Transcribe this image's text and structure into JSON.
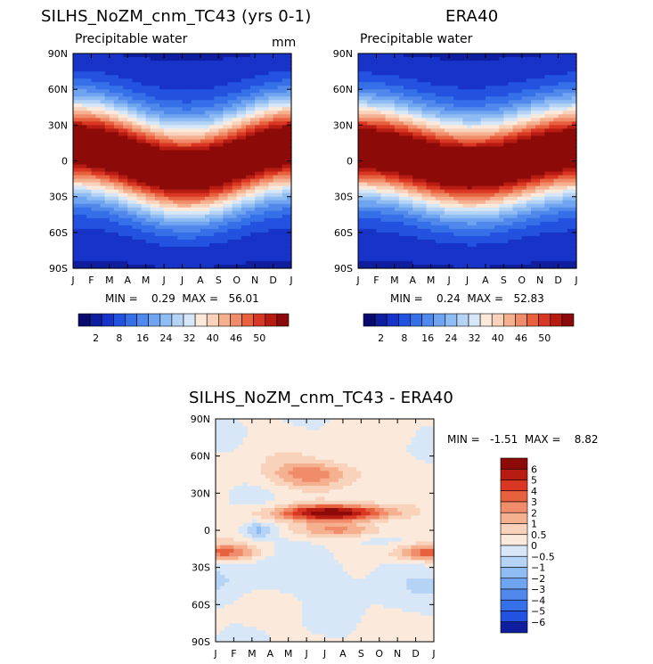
{
  "panels": [
    {
      "id": "model",
      "title": "SILHS_NoZM_cnm_TC43 (yrs 0-1)",
      "subtitle": "Precipitable water",
      "units": "mm",
      "min_max_text": "MIN =    0.29  MAX =   56.01",
      "chart_data": {
        "type": "heatmap",
        "x_ticks": [
          "J",
          "F",
          "M",
          "A",
          "M",
          "J",
          "J",
          "A",
          "S",
          "O",
          "N",
          "D",
          "J"
        ],
        "y_ticks": [
          "90N",
          "60N",
          "30N",
          "0",
          "30S",
          "60S",
          "90S"
        ],
        "y_range": [
          -90,
          90
        ],
        "min": 0.29,
        "max": 56.01,
        "itcz_amplitude_deg": 12,
        "peak_month": "A"
      }
    },
    {
      "id": "obs",
      "title": "ERA40",
      "subtitle": "Precipitable water",
      "units": "",
      "min_max_text": "MIN =    0.24  MAX =   52.83",
      "chart_data": {
        "type": "heatmap",
        "x_ticks": [
          "J",
          "F",
          "M",
          "A",
          "M",
          "J",
          "J",
          "A",
          "S",
          "O",
          "N",
          "D",
          "J"
        ],
        "y_ticks": [
          "90N",
          "60N",
          "30N",
          "0",
          "30S",
          "60S",
          "90S"
        ],
        "y_range": [
          -90,
          90
        ],
        "min": 0.24,
        "max": 52.83,
        "itcz_amplitude_deg": 9,
        "peak_month": "A"
      }
    },
    {
      "id": "diff",
      "title": "SILHS_NoZM_cnm_TC43 - ERA40",
      "subtitle": "",
      "units": "",
      "min_max_text": "MIN =   -1.51  MAX =    8.82",
      "chart_data": {
        "type": "heatmap",
        "x_ticks": [
          "J",
          "F",
          "M",
          "A",
          "M",
          "J",
          "J",
          "A",
          "S",
          "O",
          "N",
          "D",
          "J"
        ],
        "y_ticks": [
          "90N",
          "60N",
          "30N",
          "0",
          "30S",
          "60S",
          "90S"
        ],
        "y_range": [
          -90,
          90
        ],
        "min": -1.51,
        "max": 8.82
      }
    }
  ],
  "colorbar_top": {
    "labels": [
      "2",
      "8",
      "16",
      "24",
      "32",
      "40",
      "46",
      "50"
    ],
    "colors": [
      "#080a70",
      "#0e1e9e",
      "#1733c8",
      "#2252df",
      "#3670e8",
      "#5088ec",
      "#6ea4f0",
      "#8fbcf2",
      "#b5d3f5",
      "#d7e7f7",
      "#fbeadb",
      "#f9d2bb",
      "#f5b090",
      "#f08c6a",
      "#e8613f",
      "#d93624",
      "#b71c12",
      "#8c0a08"
    ]
  },
  "colorbar_diff": {
    "labels": [
      "6",
      "5",
      "4",
      "3",
      "2",
      "1",
      "0.5",
      "0",
      "-0.5",
      "-1",
      "-2",
      "-3",
      "-4",
      "-5",
      "-6"
    ],
    "colors": [
      "#8c0a08",
      "#b71c12",
      "#d93624",
      "#e8613f",
      "#f08c6a",
      "#f5b090",
      "#f9d2bb",
      "#fbeadb",
      "#d7e7f7",
      "#b5d3f5",
      "#8fbcf2",
      "#6ea4f0",
      "#5088ec",
      "#3670e8",
      "#2252df",
      "#0e1e9e"
    ]
  }
}
